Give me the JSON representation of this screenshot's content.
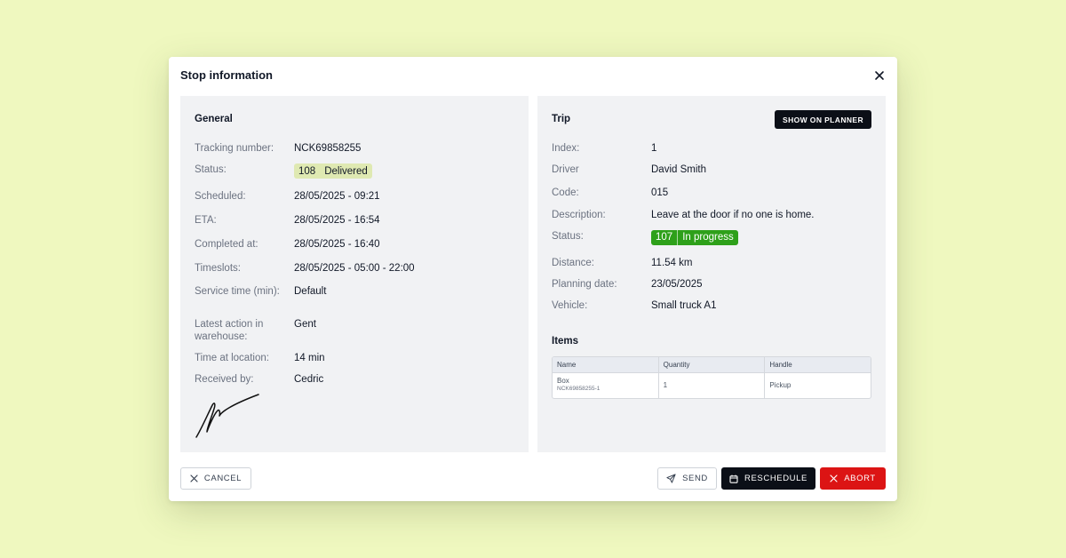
{
  "modal": {
    "title": "Stop information"
  },
  "general": {
    "title": "General",
    "rows": [
      {
        "label": "Tracking number:",
        "value": "NCK69858255"
      },
      {
        "label": "Status:",
        "badge_number": "108",
        "badge_text": "Delivered",
        "badge_color": "#dfe9b2"
      },
      {
        "label": "Scheduled:",
        "value": "28/05/2025 - 09:21"
      },
      {
        "label": "ETA:",
        "value": "28/05/2025 - 16:54"
      },
      {
        "label": "Completed at:",
        "value": "28/05/2025 - 16:40"
      },
      {
        "label": "Timeslots:",
        "value": "28/05/2025 - 05:00 - 22:00"
      },
      {
        "label": "Service time (min):",
        "value": "Default"
      },
      {
        "label": "Latest action in warehouse:",
        "value": "Gent"
      },
      {
        "label": "Time at location:",
        "value": "14 min"
      },
      {
        "label": "Received by:",
        "value": "Cedric"
      }
    ]
  },
  "trip": {
    "title": "Trip",
    "planner_button": "SHOW ON PLANNER",
    "rows": [
      {
        "label": "Index:",
        "value": "1"
      },
      {
        "label": "Driver",
        "value": "David Smith"
      },
      {
        "label": "Code:",
        "value": "015"
      },
      {
        "label": "Description:",
        "value": "Leave at the door if no one is home."
      },
      {
        "label": "Status:",
        "badge_number": "107",
        "badge_text": "In progress",
        "badge_color": "#2ea01a"
      },
      {
        "label": "Distance:",
        "value": "11.54 km"
      },
      {
        "label": "Planning date:",
        "value": "23/05/2025"
      },
      {
        "label": "Vehicle:",
        "value": "Small truck A1"
      }
    ]
  },
  "items": {
    "title": "Items",
    "columns": [
      "Name",
      "Quantity",
      "Handle"
    ],
    "rows": [
      {
        "name": "Box",
        "sub": "NCK69858255-1",
        "quantity": "1",
        "handle": "Pickup"
      }
    ]
  },
  "footer": {
    "cancel": "CANCEL",
    "send": "SEND",
    "reschedule": "RESCHEDULE",
    "abort": "ABORT"
  },
  "icons": {
    "close": "close-icon",
    "cancel": "x-icon",
    "send": "send-icon",
    "reschedule": "calendar-icon",
    "abort": "x-icon"
  },
  "colors": {
    "background": "#eff8bf",
    "panel": "#f1f2f4",
    "primary_button": "#0b0f17",
    "danger_button": "#dc1414"
  }
}
